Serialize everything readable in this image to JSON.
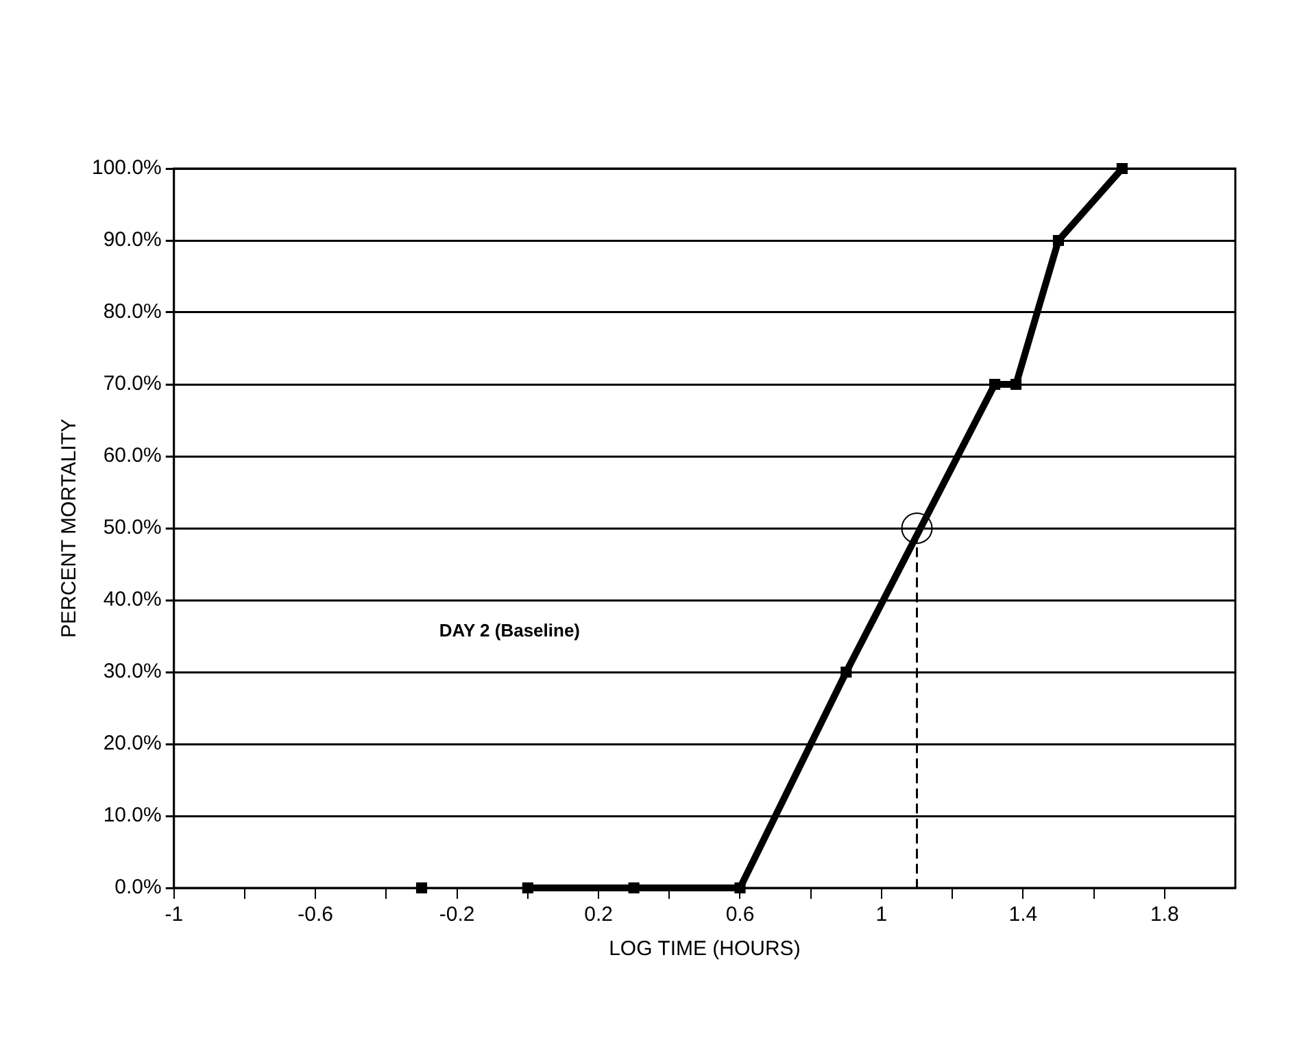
{
  "chart_data": {
    "type": "line",
    "xlabel": "LOG TIME (HOURS)",
    "ylabel": "PERCENT MORTALITY",
    "annotations": [
      "DAY 2 (Baseline)"
    ],
    "xlim": [
      -1,
      2
    ],
    "ylim": [
      0,
      100
    ],
    "xticks": [
      {
        "value": -1,
        "label": "-1"
      },
      {
        "value": -0.8,
        "label": null
      },
      {
        "value": -0.6,
        "label": "-0.6"
      },
      {
        "value": -0.4,
        "label": null
      },
      {
        "value": -0.2,
        "label": "-0.2"
      },
      {
        "value": 0,
        "label": null
      },
      {
        "value": 0.2,
        "label": "0.2"
      },
      {
        "value": 0.4,
        "label": null
      },
      {
        "value": 0.6,
        "label": "0.6"
      },
      {
        "value": 0.8,
        "label": null
      },
      {
        "value": 1,
        "label": "1"
      },
      {
        "value": 1.2,
        "label": null
      },
      {
        "value": 1.4,
        "label": "1.4"
      },
      {
        "value": 1.6,
        "label": null
      },
      {
        "value": 1.8,
        "label": "1.8"
      }
    ],
    "yticks": [
      {
        "value": 0,
        "label": "0.0%"
      },
      {
        "value": 10,
        "label": "10.0%"
      },
      {
        "value": 20,
        "label": "20.0%"
      },
      {
        "value": 30,
        "label": "30.0%"
      },
      {
        "value": 40,
        "label": "40.0%"
      },
      {
        "value": 50,
        "label": "50.0%"
      },
      {
        "value": 60,
        "label": "60.0%"
      },
      {
        "value": 70,
        "label": "70.0%"
      },
      {
        "value": 80,
        "label": "80.0%"
      },
      {
        "value": 90,
        "label": "90.0%"
      },
      {
        "value": 100,
        "label": "100.0%"
      }
    ],
    "grid": "y",
    "marker": "square",
    "line_style": "solid",
    "series": [
      {
        "type": "scatter",
        "color": "#000000",
        "x": [
          -0.3
        ],
        "values": [
          0
        ]
      },
      {
        "type": "line",
        "color": "#000000",
        "x": [
          0,
          0.3,
          0.6,
          0.9,
          1.32,
          1.38,
          1.5,
          1.68
        ],
        "values": [
          0,
          0,
          0,
          30,
          70,
          70,
          90,
          100
        ]
      },
      {
        "type": "line",
        "color": "#000000",
        "marker": "none",
        "line_style": "dashed",
        "x": [
          1.1,
          1.1
        ],
        "values": [
          0,
          50
        ]
      },
      {
        "type": "scatter",
        "color": "#000000",
        "marker": "circle",
        "x": [
          1.1
        ],
        "values": [
          50
        ]
      }
    ]
  }
}
